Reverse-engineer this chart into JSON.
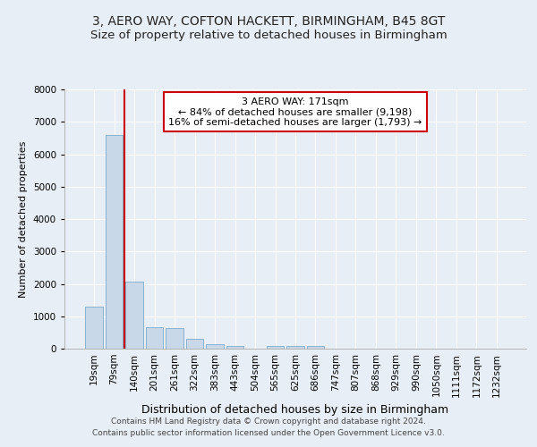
{
  "title_line1": "3, AERO WAY, COFTON HACKETT, BIRMINGHAM, B45 8GT",
  "title_line2": "Size of property relative to detached houses in Birmingham",
  "xlabel": "Distribution of detached houses by size in Birmingham",
  "ylabel": "Number of detached properties",
  "footer_line1": "Contains HM Land Registry data © Crown copyright and database right 2024.",
  "footer_line2": "Contains public sector information licensed under the Open Government Licence v3.0.",
  "bar_labels": [
    "19sqm",
    "79sqm",
    "140sqm",
    "201sqm",
    "261sqm",
    "322sqm",
    "383sqm",
    "443sqm",
    "504sqm",
    "565sqm",
    "625sqm",
    "686sqm",
    "747sqm",
    "807sqm",
    "868sqm",
    "929sqm",
    "990sqm",
    "1050sqm",
    "1111sqm",
    "1172sqm",
    "1232sqm"
  ],
  "bar_values": [
    1300,
    6600,
    2080,
    650,
    640,
    300,
    150,
    90,
    0,
    80,
    75,
    80,
    0,
    0,
    0,
    0,
    0,
    0,
    0,
    0,
    0
  ],
  "bar_color": "#c8d8e8",
  "bar_edge_color": "#7aaac8",
  "vline_x": 1.5,
  "annotation_text_line1": "3 AERO WAY: 171sqm",
  "annotation_text_line2": "← 84% of detached houses are smaller (9,198)",
  "annotation_text_line3": "16% of semi-detached houses are larger (1,793) →",
  "vline_color": "#cc0000",
  "annotation_box_facecolor": "#ffffff",
  "annotation_box_edgecolor": "#cc0000",
  "ylim": [
    0,
    8000
  ],
  "yticks": [
    0,
    1000,
    2000,
    3000,
    4000,
    5000,
    6000,
    7000,
    8000
  ],
  "bg_color": "#e8eef5",
  "plot_bg_color": "#e8eef5",
  "grid_color": "#ffffff",
  "title_fontsize": 10,
  "subtitle_fontsize": 9.5,
  "ylabel_fontsize": 8,
  "xlabel_fontsize": 9,
  "tick_fontsize": 7.5,
  "footer_fontsize": 6.5
}
